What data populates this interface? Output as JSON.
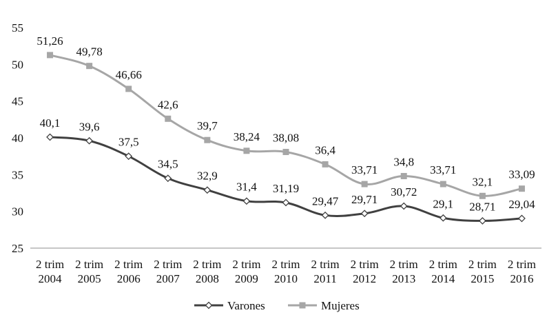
{
  "chart_data": {
    "type": "line",
    "categories": [
      [
        "2 trim",
        "2004"
      ],
      [
        "2 trim",
        "2005"
      ],
      [
        "2 trim",
        "2006"
      ],
      [
        "2 trim",
        "2007"
      ],
      [
        "2 trim",
        "2008"
      ],
      [
        "2 trim",
        "2009"
      ],
      [
        "2 trim",
        "2010"
      ],
      [
        "2 trim",
        "2011"
      ],
      [
        "2 trim",
        "2012"
      ],
      [
        "2 trim",
        "2013"
      ],
      [
        "2 trim",
        "2014"
      ],
      [
        "2 trim",
        "2015"
      ],
      [
        "2 trim",
        "2016"
      ]
    ],
    "ylim": [
      25,
      55
    ],
    "yticks": [
      "25",
      "30",
      "35",
      "40",
      "45",
      "50",
      "55"
    ],
    "grid": false,
    "legend_position": "bottom",
    "series": [
      {
        "name": "Varones",
        "color": "#404040",
        "marker": "diamond-open",
        "values": [
          40.1,
          39.6,
          37.5,
          34.5,
          32.9,
          31.4,
          31.19,
          29.47,
          29.71,
          30.72,
          29.1,
          28.71,
          29.04
        ],
        "labels": [
          "40,1",
          "39,6",
          "37,5",
          "34,5",
          "32,9",
          "31,4",
          "31,19",
          "29,47",
          "29,71",
          "30,72",
          "29,1",
          "28,71",
          "29,04"
        ]
      },
      {
        "name": "Mujeres",
        "color": "#a6a6a6",
        "marker": "square",
        "values": [
          51.26,
          49.78,
          46.66,
          42.6,
          39.7,
          38.24,
          38.08,
          36.4,
          33.71,
          34.8,
          33.71,
          32.1,
          33.09
        ],
        "labels": [
          "51,26",
          "49,78",
          "46,66",
          "42,6",
          "39,7",
          "38,24",
          "38,08",
          "36,4",
          "33,71",
          "34,8",
          "33,71",
          "32,1",
          "33,09"
        ]
      }
    ]
  }
}
